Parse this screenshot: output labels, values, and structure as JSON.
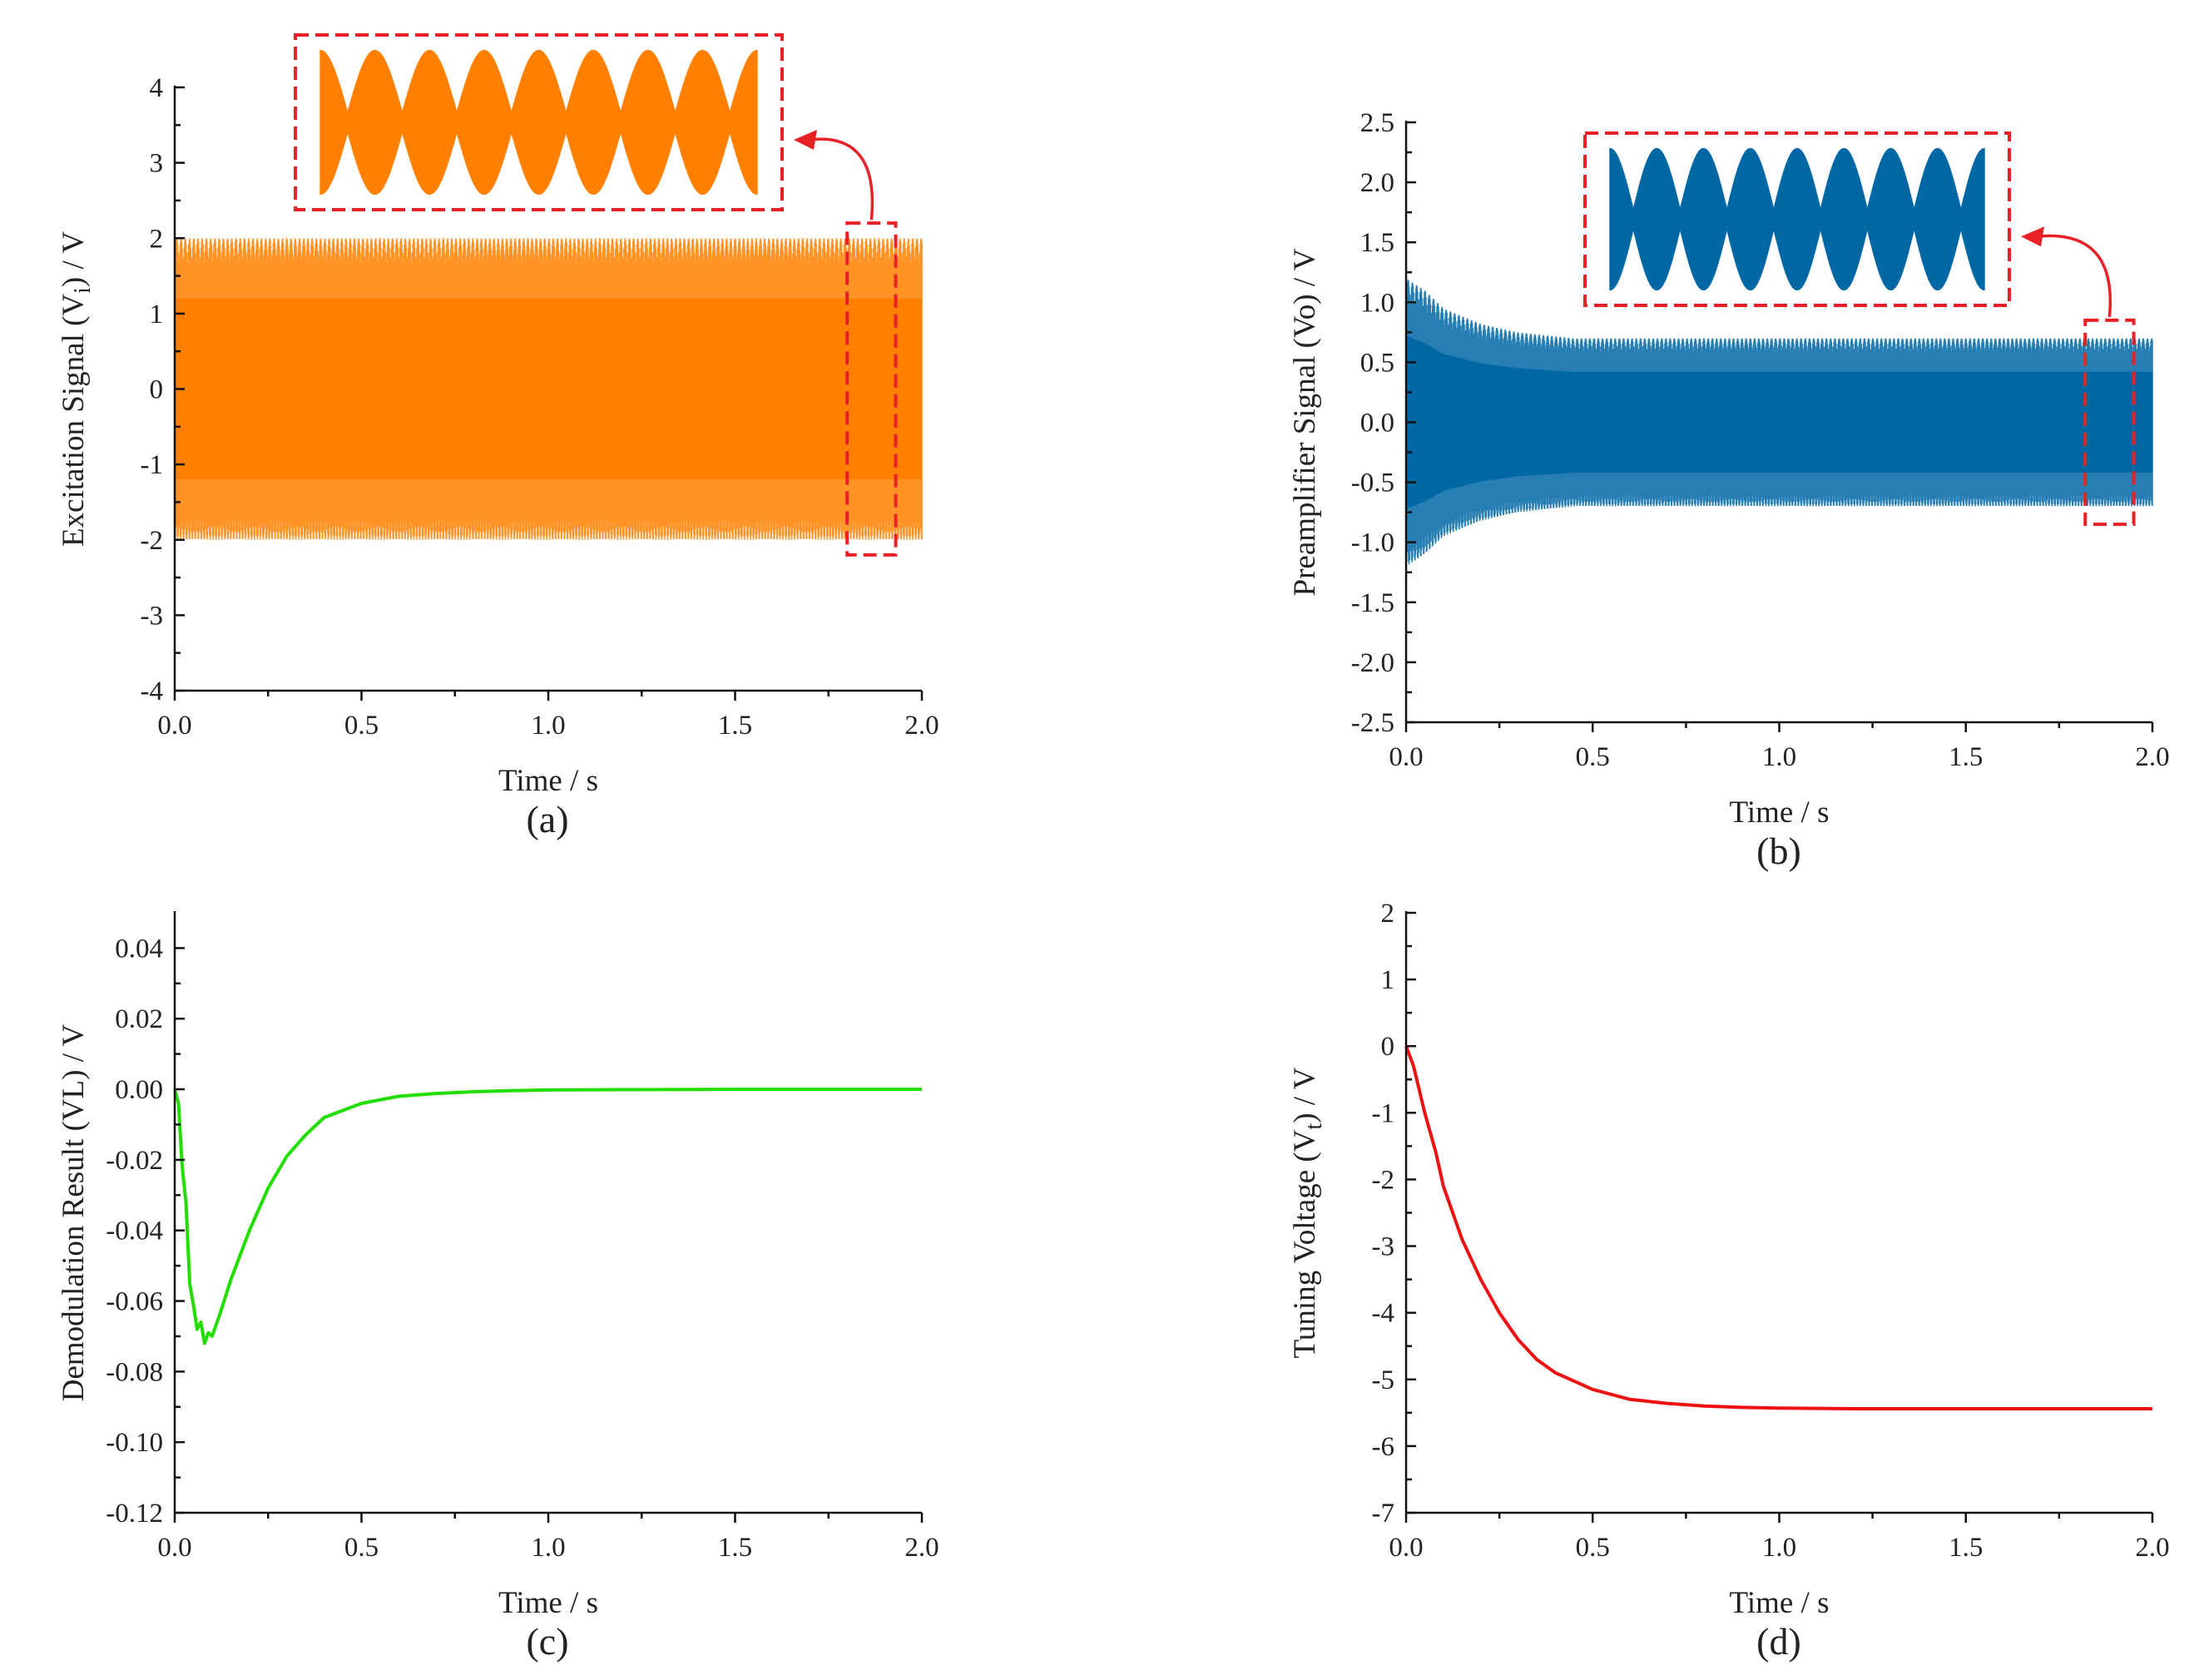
{
  "chart_data": [
    {
      "id": "a",
      "type": "line",
      "panel_label": "(a)",
      "title": "",
      "xlabel": "Time / s",
      "ylabel_main": "Excitation Signal (V",
      "ylabel_sub": "i",
      "ylabel_tail": ") / V",
      "xlim": [
        0,
        2.0
      ],
      "ylim": [
        -4,
        4
      ],
      "xticks": [
        0.0,
        0.5,
        1.0,
        1.5,
        2.0
      ],
      "xtick_labels": [
        "0.0",
        "0.5",
        "1.0",
        "1.5",
        "2.0"
      ],
      "yticks": [
        -4,
        -3,
        -2,
        -1,
        0,
        1,
        2,
        3,
        4
      ],
      "ytick_labels": [
        "-4",
        "-3",
        "-2",
        "-1",
        "0",
        "1",
        "2",
        "3",
        "4"
      ],
      "series": [
        {
          "name": "Excitation Signal",
          "color": "#ff8000",
          "kind": "oscillation",
          "amplitude_envelope": {
            "x": [
              0.0,
              2.0
            ],
            "y": [
              2.0,
              2.0
            ]
          }
        }
      ],
      "annotations": {
        "zoom_window_x": [
          1.8,
          1.93
        ],
        "zoom_window_y": [
          -2.2,
          2.2
        ],
        "inset_beats": 8,
        "inset_color": "#ff8000",
        "highlight_color": "#e82127"
      }
    },
    {
      "id": "b",
      "type": "line",
      "panel_label": "(b)",
      "title": "",
      "xlabel": "Time / s",
      "ylabel_main": "Preamplifier Signal (Vo) / V",
      "xlim": [
        0,
        2.0
      ],
      "ylim": [
        -2.5,
        2.5
      ],
      "xticks": [
        0.0,
        0.5,
        1.0,
        1.5,
        2.0
      ],
      "xtick_labels": [
        "0.0",
        "0.5",
        "1.0",
        "1.5",
        "2.0"
      ],
      "yticks": [
        -2.5,
        -2.0,
        -1.5,
        -1.0,
        -0.5,
        0.0,
        0.5,
        1.0,
        1.5,
        2.0,
        2.5
      ],
      "ytick_labels": [
        "-2.5",
        "-2.0",
        "-1.5",
        "-1.0",
        "-0.5",
        "0.0",
        "0.5",
        "1.0",
        "1.5",
        "2.0",
        "2.5"
      ],
      "series": [
        {
          "name": "Preamplifier Signal",
          "color": "#0067a5",
          "kind": "oscillation",
          "amplitude_envelope": {
            "x": [
              0.0,
              0.05,
              0.1,
              0.2,
              0.3,
              0.45,
              2.0
            ],
            "y": [
              1.2,
              1.1,
              0.95,
              0.82,
              0.75,
              0.7,
              0.7
            ]
          }
        }
      ],
      "annotations": {
        "zoom_window_x": [
          1.82,
          1.95
        ],
        "zoom_window_y": [
          -0.85,
          0.85
        ],
        "inset_beats": 8,
        "inset_color": "#0067a5",
        "highlight_color": "#e82127"
      }
    },
    {
      "id": "c",
      "type": "line",
      "panel_label": "(c)",
      "title": "",
      "xlabel": "Time / s",
      "ylabel_main": "Demodulation Result (VL) / V",
      "xlim": [
        0,
        2.0
      ],
      "ylim": [
        -0.12,
        0.05
      ],
      "xticks": [
        0.0,
        0.5,
        1.0,
        1.5,
        2.0
      ],
      "xtick_labels": [
        "0.0",
        "0.5",
        "1.0",
        "1.5",
        "2.0"
      ],
      "yticks": [
        -0.12,
        -0.1,
        -0.08,
        -0.06,
        -0.04,
        -0.02,
        0.0,
        0.02,
        0.04
      ],
      "ytick_labels": [
        "-0.12",
        "-0.10",
        "-0.08",
        "-0.06",
        "-0.04",
        "-0.02",
        "0.00",
        "0.02",
        "0.04"
      ],
      "series": [
        {
          "name": "Demodulation Result",
          "color": "#22dd00",
          "x": [
            0.0,
            0.01,
            0.02,
            0.03,
            0.04,
            0.05,
            0.06,
            0.07,
            0.08,
            0.09,
            0.1,
            0.12,
            0.15,
            0.2,
            0.25,
            0.3,
            0.35,
            0.4,
            0.5,
            0.6,
            0.7,
            0.8,
            0.9,
            1.0,
            1.2,
            1.5,
            2.0
          ],
          "y": [
            0.0,
            -0.004,
            -0.022,
            -0.032,
            -0.055,
            -0.061,
            -0.068,
            -0.066,
            -0.072,
            -0.069,
            -0.07,
            -0.064,
            -0.054,
            -0.04,
            -0.028,
            -0.019,
            -0.013,
            -0.008,
            -0.004,
            -0.002,
            -0.0012,
            -0.0007,
            -0.0004,
            -0.0002,
            -0.0001,
            0.0,
            0.0
          ]
        }
      ]
    },
    {
      "id": "d",
      "type": "line",
      "panel_label": "(d)",
      "title": "",
      "xlabel": "Time / s",
      "ylabel_main": "Tuning Voltage (V",
      "ylabel_sub": "t",
      "ylabel_tail": ") / V",
      "xlim": [
        0,
        2.0
      ],
      "ylim": [
        -7,
        2
      ],
      "xticks": [
        0.0,
        0.5,
        1.0,
        1.5,
        2.0
      ],
      "xtick_labels": [
        "0.0",
        "0.5",
        "1.0",
        "1.5",
        "2.0"
      ],
      "yticks": [
        -7,
        -6,
        -5,
        -4,
        -3,
        -2,
        -1,
        0,
        1,
        2
      ],
      "ytick_labels": [
        "-7",
        "-6",
        "-5",
        "-4",
        "-3",
        "-2",
        "-1",
        "0",
        "1",
        "2"
      ],
      "series": [
        {
          "name": "Tuning Voltage",
          "color": "#ee1111",
          "x": [
            0.0,
            0.02,
            0.05,
            0.08,
            0.1,
            0.15,
            0.2,
            0.25,
            0.3,
            0.35,
            0.4,
            0.5,
            0.6,
            0.7,
            0.8,
            0.9,
            1.0,
            1.2,
            1.5,
            2.0
          ],
          "y": [
            0.0,
            -0.3,
            -1.0,
            -1.6,
            -2.1,
            -2.9,
            -3.5,
            -4.0,
            -4.4,
            -4.7,
            -4.9,
            -5.15,
            -5.3,
            -5.36,
            -5.4,
            -5.42,
            -5.43,
            -5.44,
            -5.44,
            -5.44
          ]
        }
      ]
    }
  ]
}
